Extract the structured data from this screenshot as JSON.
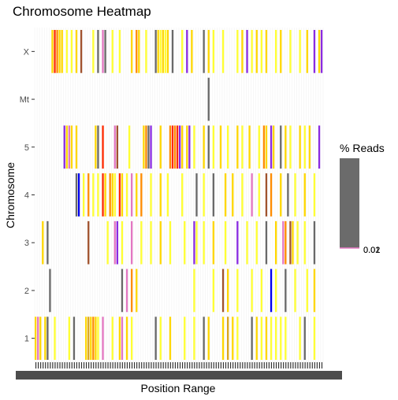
{
  "chart_data": {
    "type": "heatmap",
    "title": "Chromosome Heatmap",
    "xlabel": "Position Range",
    "ylabel": "Chromosome",
    "chromosomes": [
      "1",
      "2",
      "3",
      "4",
      "5",
      "Mt",
      "X"
    ],
    "legend": {
      "title": "% Reads",
      "labels": [
        "0.02",
        "0.01"
      ]
    },
    "colors": {
      "grey": "#696969",
      "gold": "#ffd700",
      "yellow": "#ffff33",
      "orange": "#ff8c00",
      "red": "#ff2a00",
      "purple": "#8a2be2",
      "pink": "#e377c2",
      "blue": "#0000ee",
      "brown": "#a0522d",
      "tan": "#daa520"
    },
    "x_bins": 120,
    "rows": [
      {
        "chromosome": "X",
        "cells": [
          [
            7,
            "gold"
          ],
          [
            8,
            "red"
          ],
          [
            9,
            "orange"
          ],
          [
            10,
            "gold"
          ],
          [
            11,
            "gold"
          ],
          [
            13,
            "yellow"
          ],
          [
            15,
            "yellow"
          ],
          [
            17,
            "gold"
          ],
          [
            19,
            "brown"
          ],
          [
            24,
            "yellow"
          ],
          [
            26,
            "grey"
          ],
          [
            28,
            "pink"
          ],
          [
            29,
            "grey"
          ],
          [
            32,
            "yellow"
          ],
          [
            35,
            "yellow"
          ],
          [
            40,
            "gold"
          ],
          [
            42,
            "orange"
          ],
          [
            43,
            "gold"
          ],
          [
            46,
            "yellow"
          ],
          [
            50,
            "grey"
          ],
          [
            51,
            "gold"
          ],
          [
            52,
            "yellow"
          ],
          [
            53,
            "gold"
          ],
          [
            54,
            "yellow"
          ],
          [
            55,
            "gold"
          ],
          [
            57,
            "grey"
          ],
          [
            61,
            "yellow"
          ],
          [
            63,
            "purple"
          ],
          [
            65,
            "gold"
          ],
          [
            70,
            "grey"
          ],
          [
            72,
            "gold"
          ],
          [
            74,
            "yellow"
          ],
          [
            78,
            "yellow"
          ],
          [
            84,
            "yellow"
          ],
          [
            86,
            "gold"
          ],
          [
            88,
            "purple"
          ],
          [
            90,
            "yellow"
          ],
          [
            92,
            "gold"
          ],
          [
            94,
            "yellow"
          ],
          [
            96,
            "gold"
          ],
          [
            100,
            "yellow"
          ],
          [
            102,
            "gold"
          ],
          [
            106,
            "yellow"
          ],
          [
            110,
            "yellow"
          ],
          [
            113,
            "gold"
          ],
          [
            116,
            "purple"
          ],
          [
            118,
            "gold"
          ],
          [
            119,
            "purple"
          ]
        ]
      },
      {
        "chromosome": "Mt",
        "cells": [
          [
            72,
            "grey"
          ]
        ]
      },
      {
        "chromosome": "5",
        "cells": [
          [
            12,
            "purple"
          ],
          [
            13,
            "gold"
          ],
          [
            14,
            "pink"
          ],
          [
            15,
            "gold"
          ],
          [
            17,
            "gold"
          ],
          [
            25,
            "gold"
          ],
          [
            26,
            "grey"
          ],
          [
            28,
            "red"
          ],
          [
            33,
            "pink"
          ],
          [
            34,
            "brown"
          ],
          [
            39,
            "yellow"
          ],
          [
            45,
            "gold"
          ],
          [
            46,
            "orange"
          ],
          [
            47,
            "grey"
          ],
          [
            48,
            "purple"
          ],
          [
            52,
            "gold"
          ],
          [
            56,
            "orange"
          ],
          [
            57,
            "red"
          ],
          [
            58,
            "orange"
          ],
          [
            59,
            "red"
          ],
          [
            60,
            "purple"
          ],
          [
            61,
            "gold"
          ],
          [
            63,
            "gold"
          ],
          [
            64,
            "purple"
          ],
          [
            66,
            "yellow"
          ],
          [
            70,
            "gold"
          ],
          [
            72,
            "grey"
          ],
          [
            74,
            "yellow"
          ],
          [
            77,
            "gold"
          ],
          [
            80,
            "yellow"
          ],
          [
            84,
            "gold"
          ],
          [
            86,
            "yellow"
          ],
          [
            89,
            "gold"
          ],
          [
            93,
            "yellow"
          ],
          [
            95,
            "orange"
          ],
          [
            96,
            "gold"
          ],
          [
            98,
            "purple"
          ],
          [
            99,
            "gold"
          ],
          [
            102,
            "grey"
          ],
          [
            104,
            "gold"
          ],
          [
            106,
            "yellow"
          ],
          [
            110,
            "gold"
          ],
          [
            112,
            "yellow"
          ],
          [
            114,
            "gold"
          ],
          [
            118,
            "purple"
          ]
        ]
      },
      {
        "chromosome": "4",
        "cells": [
          [
            17,
            "grey"
          ],
          [
            18,
            "blue"
          ],
          [
            20,
            "yellow"
          ],
          [
            22,
            "orange"
          ],
          [
            24,
            "yellow"
          ],
          [
            26,
            "yellow"
          ],
          [
            28,
            "red"
          ],
          [
            29,
            "gold"
          ],
          [
            31,
            "orange"
          ],
          [
            32,
            "gold"
          ],
          [
            33,
            "yellow"
          ],
          [
            35,
            "red"
          ],
          [
            36,
            "gold"
          ],
          [
            38,
            "yellow"
          ],
          [
            40,
            "pink"
          ],
          [
            42,
            "gold"
          ],
          [
            44,
            "orange"
          ],
          [
            48,
            "yellow"
          ],
          [
            52,
            "gold"
          ],
          [
            55,
            "yellow"
          ],
          [
            61,
            "yellow"
          ],
          [
            67,
            "grey"
          ],
          [
            70,
            "yellow"
          ],
          [
            74,
            "grey"
          ],
          [
            79,
            "gold"
          ],
          [
            82,
            "gold"
          ],
          [
            86,
            "yellow"
          ],
          [
            90,
            "pink"
          ],
          [
            93,
            "yellow"
          ],
          [
            96,
            "brown"
          ],
          [
            98,
            "orange"
          ],
          [
            102,
            "gold"
          ],
          [
            105,
            "grey"
          ],
          [
            108,
            "yellow"
          ],
          [
            112,
            "gold"
          ],
          [
            116,
            "yellow"
          ]
        ]
      },
      {
        "chromosome": "3",
        "cells": [
          [
            3,
            "gold"
          ],
          [
            5,
            "grey"
          ],
          [
            22,
            "brown"
          ],
          [
            30,
            "yellow"
          ],
          [
            33,
            "pink"
          ],
          [
            34,
            "purple"
          ],
          [
            36,
            "yellow"
          ],
          [
            40,
            "pink"
          ],
          [
            44,
            "yellow"
          ],
          [
            48,
            "yellow"
          ],
          [
            52,
            "gold"
          ],
          [
            56,
            "yellow"
          ],
          [
            62,
            "yellow"
          ],
          [
            66,
            "purple"
          ],
          [
            67,
            "yellow"
          ],
          [
            70,
            "yellow"
          ],
          [
            74,
            "gold"
          ],
          [
            79,
            "yellow"
          ],
          [
            84,
            "purple"
          ],
          [
            88,
            "yellow"
          ],
          [
            92,
            "yellow"
          ],
          [
            96,
            "grey"
          ],
          [
            100,
            "gold"
          ],
          [
            103,
            "pink"
          ],
          [
            104,
            "orange"
          ],
          [
            106,
            "brown"
          ],
          [
            107,
            "gold"
          ],
          [
            109,
            "yellow"
          ],
          [
            112,
            "yellow"
          ],
          [
            116,
            "grey"
          ]
        ]
      },
      {
        "chromosome": "2",
        "cells": [
          [
            6,
            "grey"
          ],
          [
            36,
            "grey"
          ],
          [
            38,
            "pink"
          ],
          [
            40,
            "orange"
          ],
          [
            42,
            "gold"
          ],
          [
            66,
            "yellow"
          ],
          [
            74,
            "yellow"
          ],
          [
            78,
            "brown"
          ],
          [
            80,
            "gold"
          ],
          [
            84,
            "yellow"
          ],
          [
            90,
            "yellow"
          ],
          [
            94,
            "yellow"
          ],
          [
            98,
            "blue"
          ],
          [
            100,
            "yellow"
          ],
          [
            104,
            "grey"
          ],
          [
            108,
            "yellow"
          ],
          [
            113,
            "yellow"
          ],
          [
            116,
            "gold"
          ]
        ]
      },
      {
        "chromosome": "1",
        "cells": [
          [
            0,
            "gold"
          ],
          [
            1,
            "pink"
          ],
          [
            2,
            "gold"
          ],
          [
            4,
            "gold"
          ],
          [
            5,
            "grey"
          ],
          [
            8,
            "yellow"
          ],
          [
            14,
            "yellow"
          ],
          [
            16,
            "grey"
          ],
          [
            21,
            "gold"
          ],
          [
            22,
            "tan"
          ],
          [
            23,
            "gold"
          ],
          [
            24,
            "orange"
          ],
          [
            25,
            "gold"
          ],
          [
            26,
            "yellow"
          ],
          [
            28,
            "pink"
          ],
          [
            32,
            "yellow"
          ],
          [
            35,
            "gold"
          ],
          [
            36,
            "pink"
          ],
          [
            38,
            "gold"
          ],
          [
            40,
            "yellow"
          ],
          [
            50,
            "grey"
          ],
          [
            52,
            "yellow"
          ],
          [
            56,
            "gold"
          ],
          [
            62,
            "yellow"
          ],
          [
            66,
            "yellow"
          ],
          [
            70,
            "grey"
          ],
          [
            72,
            "gold"
          ],
          [
            78,
            "gold"
          ],
          [
            80,
            "tan"
          ],
          [
            82,
            "gold"
          ],
          [
            84,
            "yellow"
          ],
          [
            90,
            "grey"
          ],
          [
            92,
            "gold"
          ],
          [
            94,
            "yellow"
          ],
          [
            96,
            "gold"
          ],
          [
            98,
            "yellow"
          ],
          [
            100,
            "yellow"
          ],
          [
            102,
            "yellow"
          ],
          [
            104,
            "yellow"
          ],
          [
            110,
            "yellow"
          ],
          [
            112,
            "grey"
          ],
          [
            116,
            "yellow"
          ]
        ]
      }
    ]
  }
}
